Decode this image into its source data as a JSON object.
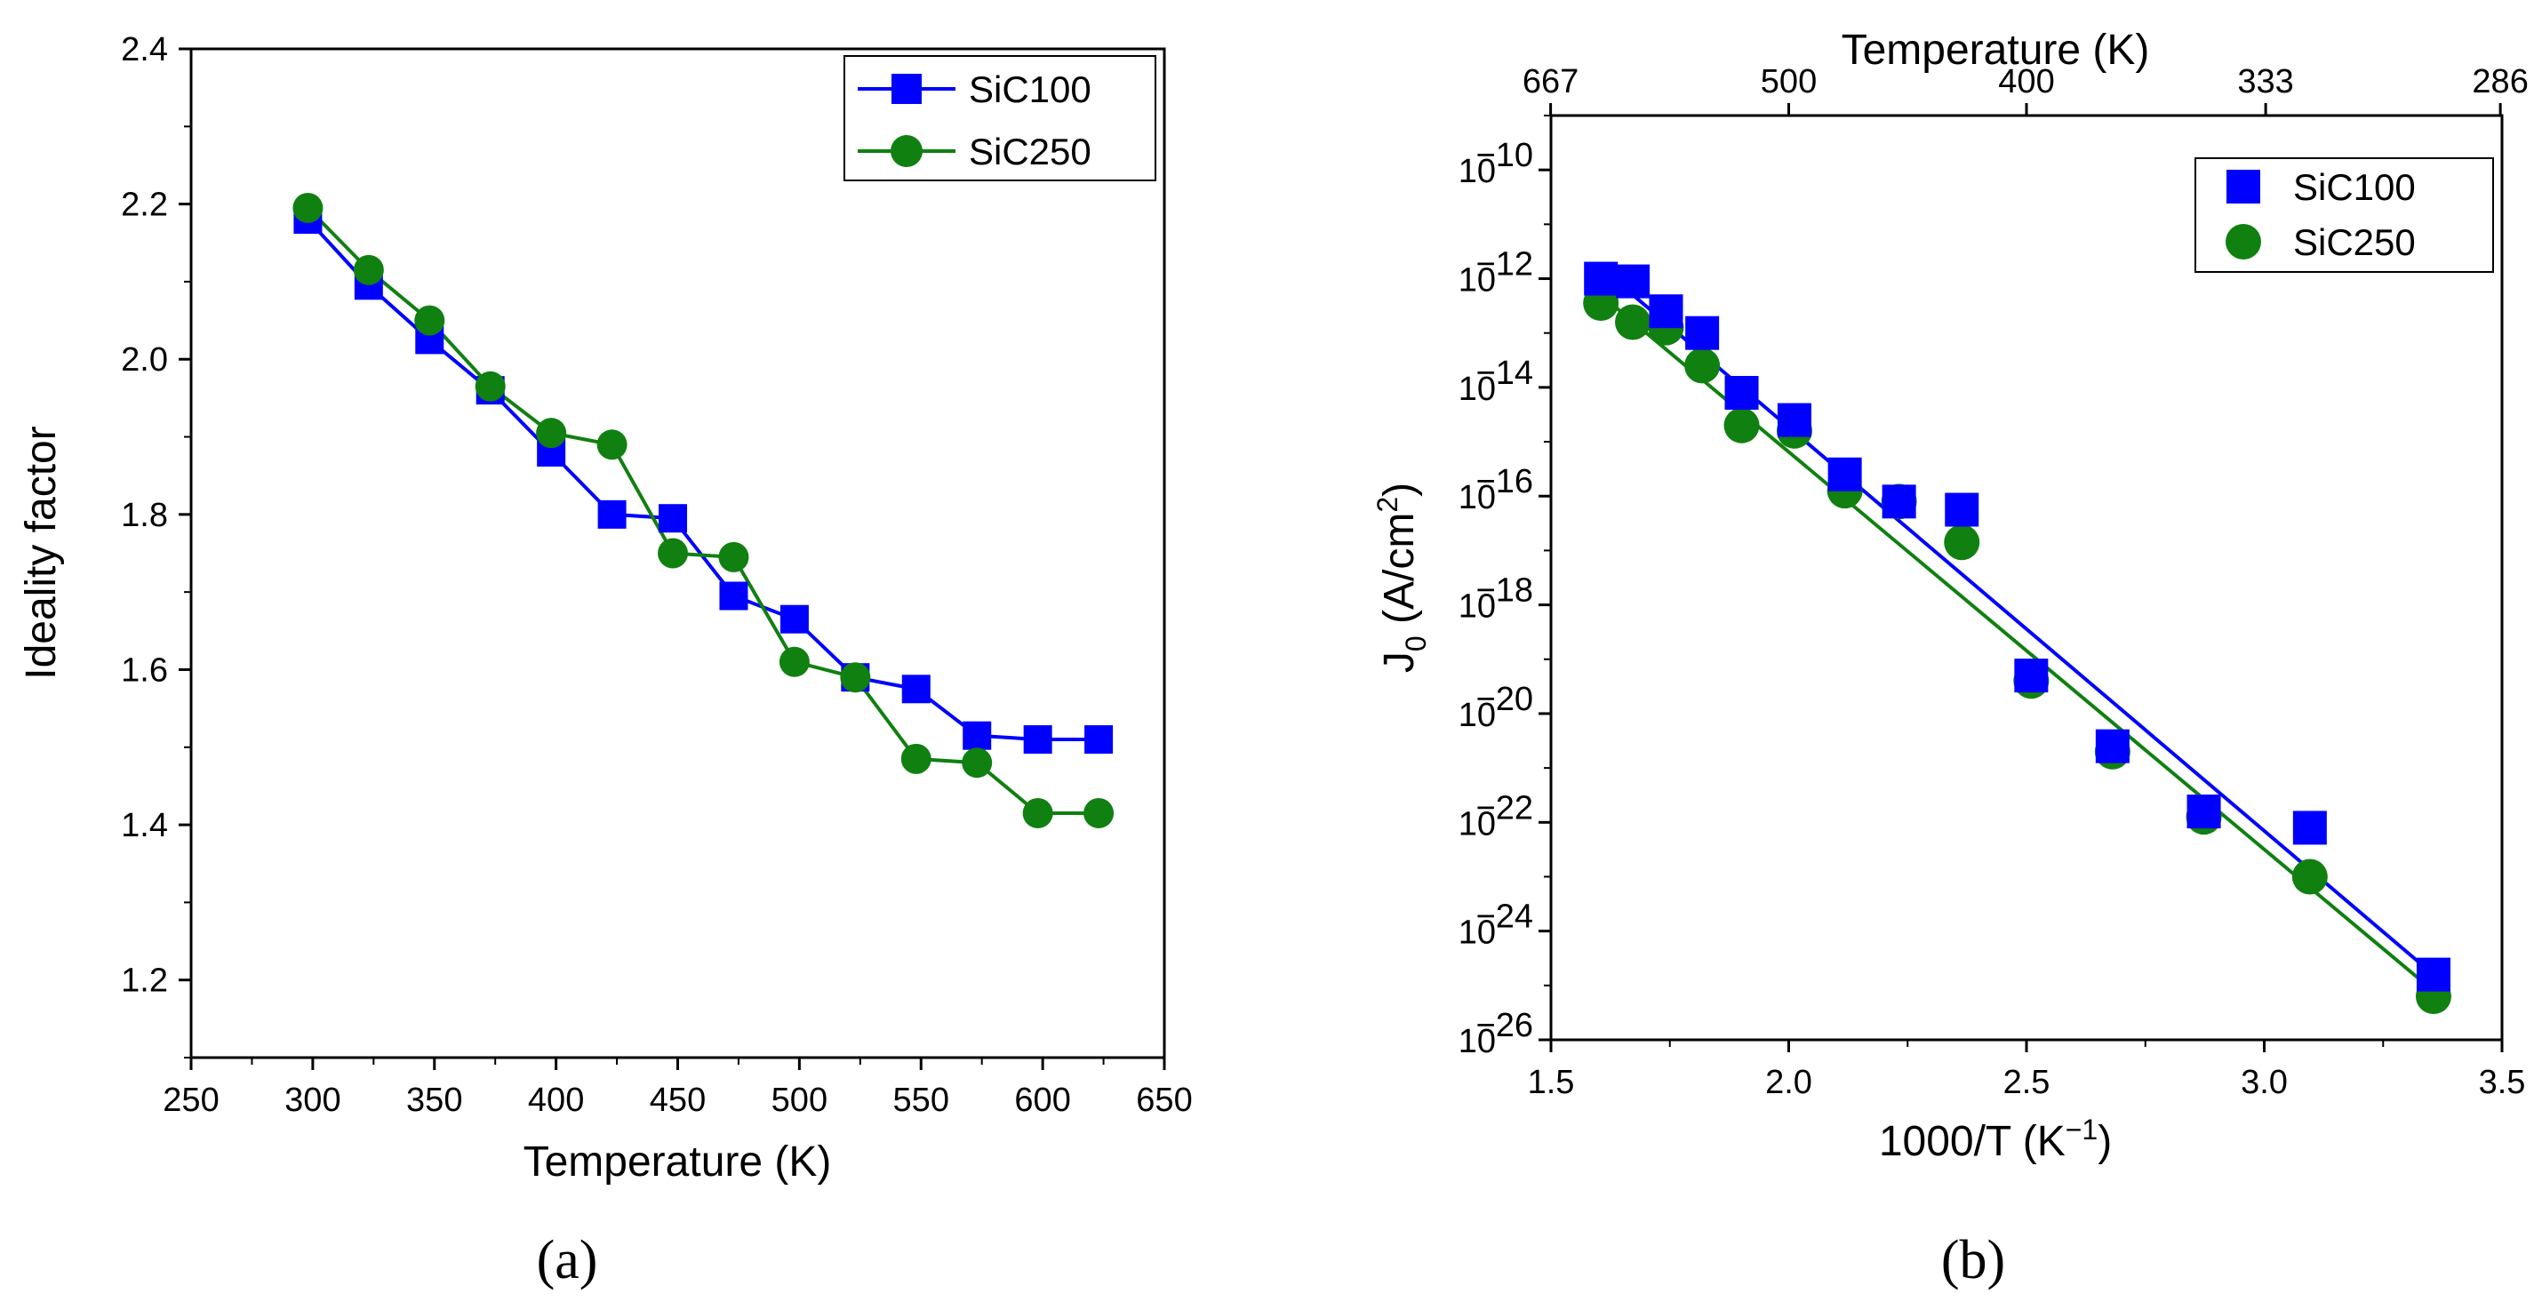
{
  "chart_data": [
    {
      "type": "line",
      "caption": "(a)",
      "xlabel": "Temperature (K)",
      "ylabel": "Ideality factor",
      "xlim": [
        250,
        650
      ],
      "ylim": [
        1.1,
        2.4
      ],
      "xticks": [
        "250",
        "300",
        "350",
        "400",
        "450",
        "500",
        "550",
        "600",
        "650"
      ],
      "yticks": [
        "1.2",
        "1.4",
        "1.6",
        "1.8",
        "2.0",
        "2.2",
        "2.4"
      ],
      "legend": "top-right",
      "series": [
        {
          "name": "SiC100",
          "color": "#0000ff",
          "marker": "square",
          "x": [
            298,
            323,
            348,
            373,
            398,
            423,
            448,
            473,
            498,
            523,
            548,
            573,
            598,
            623
          ],
          "y": [
            2.18,
            2.095,
            2.025,
            1.96,
            1.88,
            1.8,
            1.795,
            1.695,
            1.665,
            1.59,
            1.575,
            1.515,
            1.51,
            1.51
          ]
        },
        {
          "name": "SiC250",
          "color": "#108010",
          "marker": "circle",
          "x": [
            298,
            323,
            348,
            373,
            398,
            423,
            448,
            473,
            498,
            523,
            548,
            573,
            598,
            623
          ],
          "y": [
            2.195,
            2.115,
            2.05,
            1.965,
            1.905,
            1.89,
            1.75,
            1.745,
            1.61,
            1.59,
            1.485,
            1.48,
            1.415,
            1.415
          ]
        }
      ]
    },
    {
      "type": "scatter",
      "caption": "(b)",
      "xlabel": "1000/T (K",
      "xlabel_sup": "−1",
      "xlabel_end": ")",
      "ylabel_main": "J",
      "ylabel_sub": "0",
      "ylabel_unit": " (A/cm",
      "ylabel_sup": "2",
      "ylabel_end": ")",
      "top_xlabel": "Temperature (K)",
      "xlim": [
        1.5,
        3.5
      ],
      "ylim_log10": [
        -26,
        -9
      ],
      "yscale": "log",
      "xticks": [
        "1.5",
        "2.0",
        "2.5",
        "3.0",
        "3.5"
      ],
      "top_xticks": [
        "667",
        "500",
        "400",
        "333",
        "286"
      ],
      "yticks": [
        {
          "base": "10",
          "exp": "−10"
        },
        {
          "base": "10",
          "exp": "−12"
        },
        {
          "base": "10",
          "exp": "−14"
        },
        {
          "base": "10",
          "exp": "−16"
        },
        {
          "base": "10",
          "exp": "−18"
        },
        {
          "base": "10",
          "exp": "−20"
        },
        {
          "base": "10",
          "exp": "−22"
        },
        {
          "base": "10",
          "exp": "−24"
        },
        {
          "base": "10",
          "exp": "−26"
        }
      ],
      "legend": "top-right",
      "series": [
        {
          "name": "SiC100",
          "color": "#0000ff",
          "marker": "square",
          "x": [
            1.605,
            1.672,
            1.742,
            1.818,
            1.901,
            2.012,
            2.118,
            2.232,
            2.364,
            2.51,
            2.681,
            2.873,
            3.096,
            3.356
          ],
          "y_log10": [
            -12.0,
            -12.05,
            -12.6,
            -13.0,
            -14.1,
            -14.6,
            -15.6,
            -16.1,
            -16.25,
            -19.3,
            -20.6,
            -21.8,
            -22.1,
            -24.8
          ],
          "fit_log10": [
            [
              1.605,
              -11.8
            ],
            [
              3.356,
              -24.8
            ]
          ]
        },
        {
          "name": "SiC250",
          "color": "#108010",
          "marker": "circle",
          "x": [
            1.605,
            1.672,
            1.742,
            1.818,
            1.901,
            2.012,
            2.118,
            2.232,
            2.364,
            2.51,
            2.681,
            2.873,
            3.096,
            3.356
          ],
          "y_log10": [
            -12.45,
            -12.8,
            -12.9,
            -13.6,
            -14.7,
            -14.8,
            -15.9,
            -16.1,
            -16.85,
            -19.4,
            -20.7,
            -21.9,
            -23.0,
            -25.2
          ],
          "fit_log10": [
            [
              1.605,
              -12.3
            ],
            [
              3.356,
              -25.1
            ]
          ]
        }
      ]
    }
  ]
}
